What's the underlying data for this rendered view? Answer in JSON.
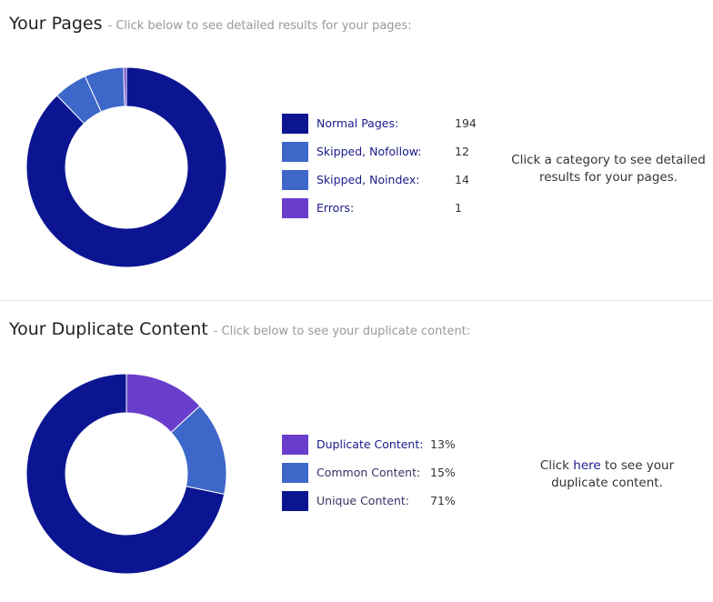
{
  "pages": {
    "title": "Your Pages",
    "subtitle": "- Click below to see detailed results for your pages:",
    "note": "Click a category to see detailed results for your pages.",
    "chart_data": {
      "type": "pie",
      "title": "",
      "legend": "right",
      "categories": [
        "Normal Pages:",
        "Skipped, Nofollow:",
        "Skipped, Noindex:",
        "Errors:"
      ],
      "values": [
        194,
        12,
        14,
        1
      ],
      "colors": [
        "#0c1591",
        "#3d67c9",
        "#3d67c9",
        "#6a3ecc"
      ]
    }
  },
  "duplicates": {
    "title": "Your Duplicate Content",
    "subtitle": "- Click below to see your duplicate content:",
    "note_prefix": "Click",
    "note_link": "here",
    "note_suffix": "to see your duplicate content.",
    "chart_data": {
      "type": "pie",
      "title": "",
      "legend": "right",
      "categories": [
        "Duplicate Content:",
        "Common Content:",
        "Unique Content:"
      ],
      "values": [
        13,
        15,
        71
      ],
      "value_labels": [
        "13%",
        "15%",
        "71%"
      ],
      "colors": [
        "#6a3ecc",
        "#3d67c9",
        "#0c1591"
      ]
    }
  }
}
